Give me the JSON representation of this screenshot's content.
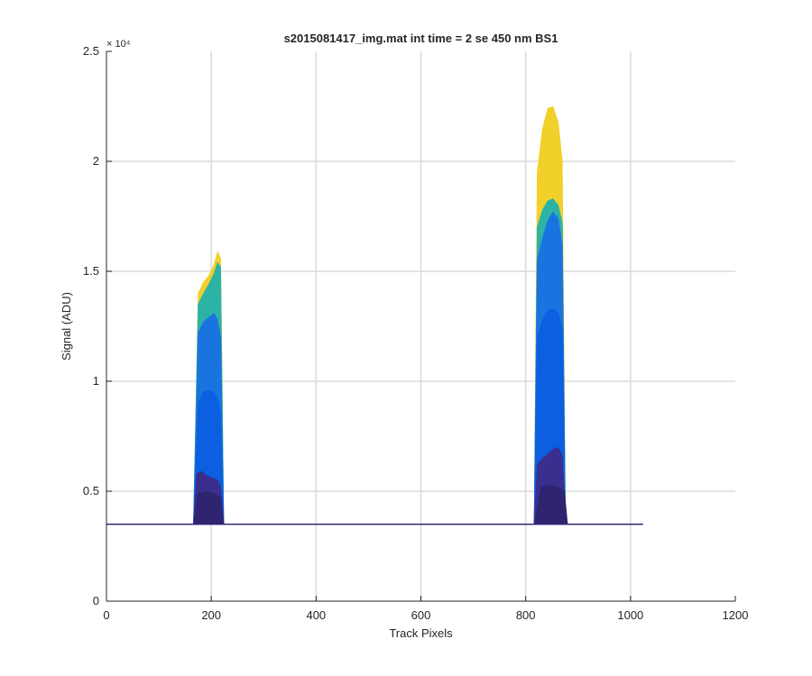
{
  "chart_data": {
    "type": "area",
    "title": "s2015081417_img.mat int time = 2 se  450 nm BS1",
    "xlabel": "Track Pixels",
    "ylabel": "Signal (ADU)",
    "xlim": [
      0,
      1200
    ],
    "ylim": [
      0,
      25000
    ],
    "x_ticks": [
      0,
      200,
      400,
      600,
      800,
      1000,
      1200
    ],
    "y_ticks": [
      0,
      5000,
      10000,
      15000,
      20000,
      25000
    ],
    "x_tick_labels": [
      "0",
      "200",
      "400",
      "600",
      "800",
      "1000",
      "1200"
    ],
    "y_tick_labels": [
      "0",
      "0.5",
      "1",
      "1.5",
      "2",
      "2.5"
    ],
    "y_exponent_label": "× 10⁴",
    "grid": true,
    "baseline": 3500,
    "x_range_of_data": [
      0,
      1024
    ],
    "series": [
      {
        "color": "#f2d02a",
        "peaks": [
          {
            "x": [
              160,
              166,
              175,
              185,
              195,
              205,
              212,
              218,
              224,
              228
            ],
            "y": [
              3500,
              3500,
              14000,
              14500,
              14800,
              15300,
              15900,
              15600,
              3500,
              3500
            ]
          },
          {
            "x": [
              810,
              816,
              822,
              832,
              842,
              852,
              862,
              870,
              876,
              880
            ],
            "y": [
              3500,
              3500,
              19500,
              21500,
              22400,
              22500,
              21800,
              20000,
              3500,
              3500
            ]
          }
        ]
      },
      {
        "color": "#2cb3a6",
        "peaks": [
          {
            "x": [
              160,
              166,
              175,
              185,
              195,
              205,
              212,
              218,
              224,
              228
            ],
            "y": [
              3500,
              3500,
              13500,
              14000,
              14400,
              14900,
              15400,
              15200,
              3500,
              3500
            ]
          },
          {
            "x": [
              810,
              816,
              822,
              832,
              842,
              852,
              862,
              870,
              876,
              880
            ],
            "y": [
              3500,
              3500,
              17000,
              17800,
              18200,
              18300,
              18000,
              17200,
              3500,
              3500
            ]
          }
        ]
      },
      {
        "color": "#1a74e0",
        "peaks": [
          {
            "x": [
              160,
              166,
              175,
              185,
              195,
              205,
              212,
              218,
              224,
              228
            ],
            "y": [
              3500,
              3500,
              12200,
              12700,
              12900,
              13100,
              12800,
              12000,
              3500,
              3500
            ]
          },
          {
            "x": [
              810,
              816,
              822,
              832,
              842,
              852,
              862,
              870,
              876,
              880
            ],
            "y": [
              3500,
              3500,
              15500,
              16500,
              17300,
              17700,
              17400,
              16200,
              3500,
              3500
            ]
          }
        ]
      },
      {
        "color": "#0b5fe0",
        "peaks": [
          {
            "x": [
              160,
              166,
              175,
              185,
              195,
              205,
              212,
              218,
              224,
              228
            ],
            "y": [
              3500,
              3500,
              9000,
              9500,
              9600,
              9500,
              9200,
              8600,
              3500,
              3500
            ]
          },
          {
            "x": [
              810,
              816,
              822,
              832,
              842,
              852,
              862,
              870,
              876,
              880
            ],
            "y": [
              3500,
              3500,
              12000,
              12800,
              13200,
              13300,
              13100,
              12400,
              3500,
              3500
            ]
          }
        ]
      },
      {
        "color": "#3a2f8f",
        "peaks": [
          {
            "x": [
              160,
              166,
              172,
              182,
              192,
              202,
              212,
              218,
              224,
              228
            ],
            "y": [
              3500,
              3500,
              5800,
              5900,
              5700,
              5600,
              5500,
              5200,
              3500,
              3500
            ]
          },
          {
            "x": [
              810,
              816,
              822,
              832,
              842,
              852,
              862,
              870,
              876,
              880
            ],
            "y": [
              3500,
              3500,
              6200,
              6500,
              6700,
              6900,
              7000,
              6600,
              3500,
              3500
            ]
          }
        ]
      },
      {
        "color": "#2e2470",
        "peaks": [
          {
            "x": [
              160,
              166,
              175,
              190,
              205,
              218,
              224,
              228
            ],
            "y": [
              3500,
              3500,
              4900,
              5000,
              4900,
              4700,
              3500,
              3500
            ]
          },
          {
            "x": [
              810,
              816,
              830,
              845,
              860,
              874,
              880
            ],
            "y": [
              3500,
              3500,
              5200,
              5300,
              5200,
              5000,
              3500
            ]
          }
        ]
      }
    ]
  }
}
